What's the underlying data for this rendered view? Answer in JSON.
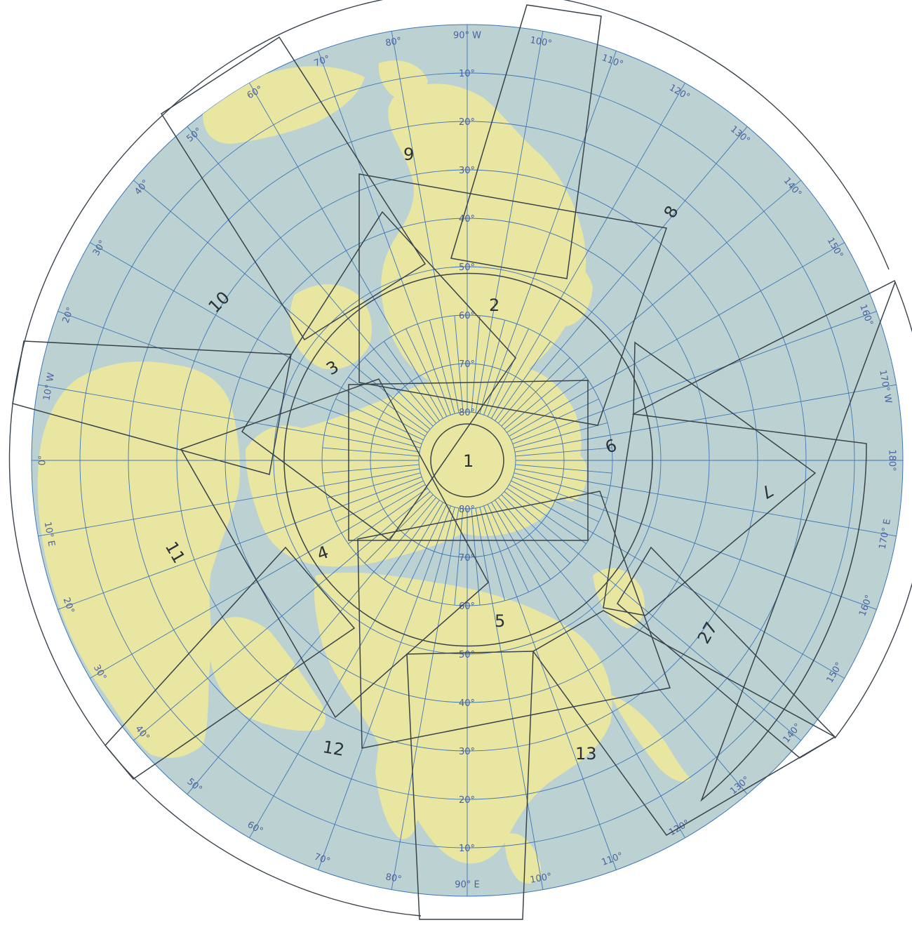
{
  "map": {
    "projection": "polar-azimuthal-north",
    "colors": {
      "ocean": "#bcd2d2",
      "land": "#e8e6a0",
      "graticule": "#3f76b8",
      "labels": "#4a62a0",
      "sheet_outline": "#38434c",
      "frame": "#3a4550"
    },
    "latitude_labels_upper": [
      "10°",
      "20°",
      "30°",
      "40°",
      "50°",
      "60°",
      "70°",
      "80°"
    ],
    "latitude_labels_lower": [
      "80°",
      "70°",
      "60°",
      "50°",
      "40°",
      "30°",
      "20°",
      "10°"
    ],
    "longitude_labels": [
      "90° W",
      "100°",
      "110°",
      "120°",
      "130°",
      "140°",
      "150°",
      "160°",
      "170° W",
      "180°",
      "170° E",
      "160°",
      "150°",
      "140°",
      "130°",
      "120°",
      "110°",
      "100°",
      "90° E",
      "80°",
      "70°",
      "60°",
      "50°",
      "40°",
      "30°",
      "20°",
      "10° E",
      "0°",
      "10° W",
      "20°",
      "30°",
      "40°",
      "50°",
      "60°",
      "70°",
      "80°"
    ],
    "sheet_numbers": [
      "1",
      "2",
      "3",
      "4",
      "5",
      "6",
      "7",
      "8",
      "9",
      "10",
      "11",
      "12",
      "13",
      "27"
    ]
  }
}
